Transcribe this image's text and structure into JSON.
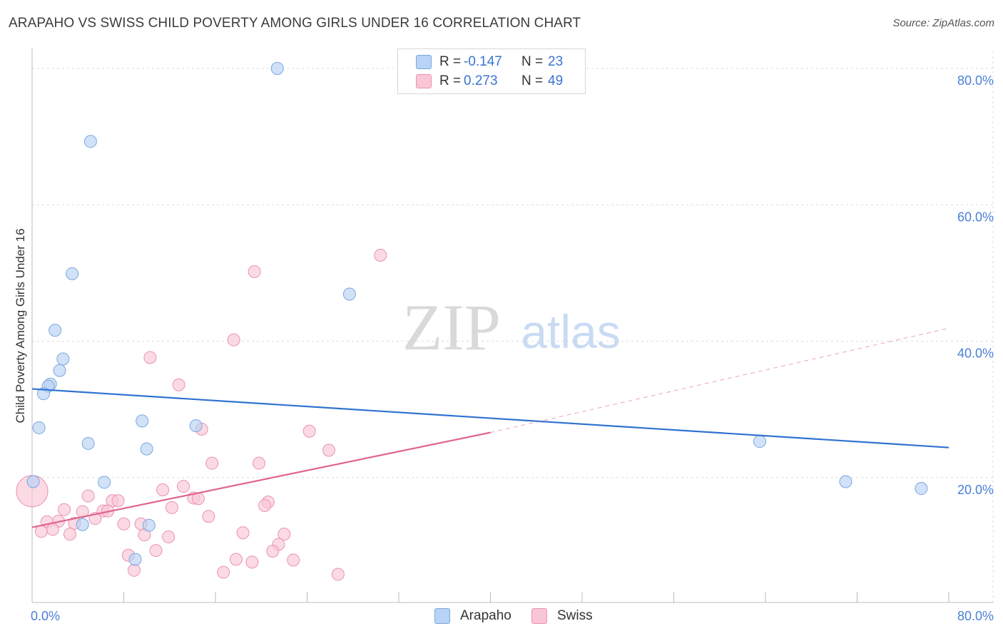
{
  "header": {
    "title": "ARAPAHO VS SWISS CHILD POVERTY AMONG GIRLS UNDER 16 CORRELATION CHART",
    "source": "Source: ZipAtlas.com"
  },
  "watermark": {
    "zip": "ZIP",
    "atlas": "atlas"
  },
  "legend": {
    "rows": [
      {
        "r_label": "R =",
        "r_value": "-0.147",
        "n_label": "N =",
        "n_value": "23",
        "color": "#b8d3f5",
        "border": "#7aa6e0"
      },
      {
        "r_label": "R =",
        "r_value": "0.273",
        "n_label": "N =",
        "n_value": "49",
        "color": "#f9c6d6",
        "border": "#e993b0"
      }
    ],
    "bottom": [
      {
        "label": "Arapaho",
        "color": "#b8d3f5",
        "border": "#7aa6e0"
      },
      {
        "label": "Swiss",
        "color": "#f9c6d6",
        "border": "#e993b0"
      }
    ]
  },
  "chart_data": {
    "type": "scatter",
    "title": "ARAPAHO VS SWISS CHILD POVERTY AMONG GIRLS UNDER 16 CORRELATION CHART",
    "xlabel": "",
    "ylabel": "Child Poverty Among Girls Under 16",
    "xlim": [
      0,
      80
    ],
    "ylim": [
      0,
      80
    ],
    "x_tick_labels": [
      "0.0%",
      "80.0%"
    ],
    "y_ticks": [
      20,
      40,
      60,
      80
    ],
    "y_tick_labels": [
      "20.0%",
      "40.0%",
      "60.0%",
      "80.0%"
    ],
    "grid": true,
    "series": [
      {
        "name": "Arapaho",
        "color": "#b8d3f5",
        "stroke": "#7aa6e0",
        "line_color": "#2f72d0",
        "trend": {
          "x": [
            0,
            80
          ],
          "y": [
            33.0,
            24.4
          ]
        },
        "points": [
          {
            "x": 21.4,
            "y": 80.0
          },
          {
            "x": 5.1,
            "y": 69.3
          },
          {
            "x": 3.5,
            "y": 49.9
          },
          {
            "x": 27.7,
            "y": 46.9
          },
          {
            "x": 2.0,
            "y": 41.6
          },
          {
            "x": 2.7,
            "y": 37.4
          },
          {
            "x": 2.4,
            "y": 35.7
          },
          {
            "x": 1.6,
            "y": 33.7
          },
          {
            "x": 1.4,
            "y": 33.4
          },
          {
            "x": 1.0,
            "y": 32.3
          },
          {
            "x": 0.6,
            "y": 27.3
          },
          {
            "x": 9.6,
            "y": 28.3
          },
          {
            "x": 14.3,
            "y": 27.6
          },
          {
            "x": 4.9,
            "y": 25.0
          },
          {
            "x": 10.0,
            "y": 24.2
          },
          {
            "x": 0.1,
            "y": 19.4
          },
          {
            "x": 6.3,
            "y": 19.3
          },
          {
            "x": 4.4,
            "y": 13.1
          },
          {
            "x": 10.2,
            "y": 13.0
          },
          {
            "x": 9.0,
            "y": 8.0
          },
          {
            "x": 63.5,
            "y": 25.3
          },
          {
            "x": 71.0,
            "y": 19.4
          },
          {
            "x": 77.6,
            "y": 18.4
          }
        ]
      },
      {
        "name": "Swiss",
        "color": "#f9c6d6",
        "stroke": "#e993b0",
        "line_color": "#e0648f",
        "trend": {
          "x": [
            0,
            40
          ],
          "y": [
            12.7,
            26.6
          ]
        },
        "trend_dashed": {
          "x": [
            40,
            80
          ],
          "y": [
            26.6,
            41.9
          ]
        },
        "points": [
          {
            "x": 30.4,
            "y": 52.6
          },
          {
            "x": 19.4,
            "y": 50.2
          },
          {
            "x": 17.6,
            "y": 40.2
          },
          {
            "x": 10.3,
            "y": 37.6
          },
          {
            "x": 12.8,
            "y": 33.6
          },
          {
            "x": 14.8,
            "y": 27.1
          },
          {
            "x": 24.2,
            "y": 26.8
          },
          {
            "x": 25.9,
            "y": 24.0
          },
          {
            "x": 15.7,
            "y": 22.1
          },
          {
            "x": 19.8,
            "y": 22.1
          },
          {
            "x": 13.2,
            "y": 18.7
          },
          {
            "x": 11.4,
            "y": 18.2
          },
          {
            "x": 4.9,
            "y": 17.3
          },
          {
            "x": 7.0,
            "y": 16.6
          },
          {
            "x": 7.5,
            "y": 16.6
          },
          {
            "x": 14.1,
            "y": 17.0
          },
          {
            "x": 14.5,
            "y": 16.9
          },
          {
            "x": 20.6,
            "y": 16.4
          },
          {
            "x": 20.3,
            "y": 15.9
          },
          {
            "x": 12.2,
            "y": 15.6
          },
          {
            "x": 2.8,
            "y": 15.3
          },
          {
            "x": 4.4,
            "y": 15.0
          },
          {
            "x": 6.2,
            "y": 15.1
          },
          {
            "x": 6.6,
            "y": 15.1
          },
          {
            "x": 15.4,
            "y": 14.3
          },
          {
            "x": 5.5,
            "y": 14.0
          },
          {
            "x": 2.3,
            "y": 13.6
          },
          {
            "x": 1.3,
            "y": 13.5
          },
          {
            "x": 3.7,
            "y": 13.3
          },
          {
            "x": 8.0,
            "y": 13.2
          },
          {
            "x": 9.5,
            "y": 13.2
          },
          {
            "x": 1.8,
            "y": 12.4
          },
          {
            "x": 0.8,
            "y": 12.1
          },
          {
            "x": 3.3,
            "y": 11.7
          },
          {
            "x": 9.8,
            "y": 11.6
          },
          {
            "x": 11.9,
            "y": 11.3
          },
          {
            "x": 18.4,
            "y": 11.9
          },
          {
            "x": 22.0,
            "y": 11.7
          },
          {
            "x": 21.5,
            "y": 10.2
          },
          {
            "x": 10.8,
            "y": 9.3
          },
          {
            "x": 21.0,
            "y": 9.2
          },
          {
            "x": 8.4,
            "y": 8.6
          },
          {
            "x": 17.8,
            "y": 8.0
          },
          {
            "x": 22.8,
            "y": 7.9
          },
          {
            "x": 19.2,
            "y": 7.6
          },
          {
            "x": 8.9,
            "y": 6.4
          },
          {
            "x": 16.7,
            "y": 6.1
          },
          {
            "x": 26.7,
            "y": 5.8
          },
          {
            "x": 0.0,
            "y": 18.0,
            "big": true
          }
        ]
      }
    ]
  }
}
